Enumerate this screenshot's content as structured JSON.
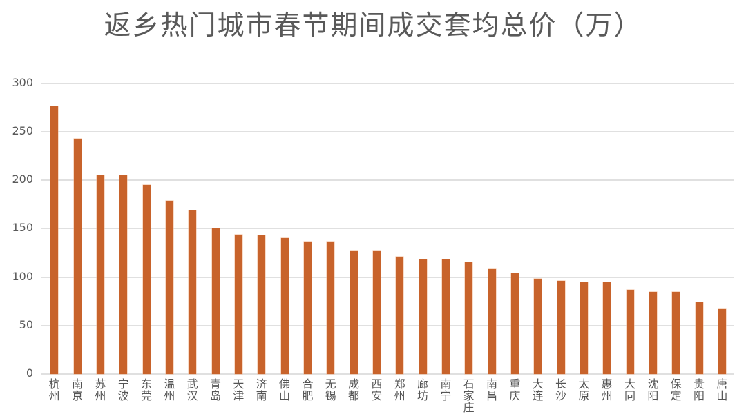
{
  "title": "返乡热门城市春节期间成交套均总价（万）",
  "colors": {
    "bar": "#c8632b",
    "grid": "#e0e0e0",
    "text": "#595959"
  },
  "chart_data": {
    "type": "bar",
    "title": "返乡热门城市春节期间成交套均总价（万）",
    "xlabel": "",
    "ylabel": "",
    "ylim": [
      0,
      300
    ],
    "yticks": [
      0,
      50,
      100,
      150,
      200,
      250,
      300
    ],
    "grid": true,
    "legend": null,
    "categories": [
      "杭州",
      "南京",
      "苏州",
      "宁波",
      "东莞",
      "温州",
      "武汉",
      "青岛",
      "天津",
      "济南",
      "佛山",
      "合肥",
      "无锡",
      "成都",
      "西安",
      "郑州",
      "廊坊",
      "南宁",
      "石家庄",
      "南昌",
      "重庆",
      "大连",
      "长沙",
      "太原",
      "惠州",
      "大同",
      "沈阳",
      "保定",
      "贵阳",
      "唐山"
    ],
    "values": [
      276,
      243,
      205,
      205,
      195,
      179,
      169,
      150,
      144,
      143,
      140,
      137,
      137,
      127,
      127,
      121,
      118,
      118,
      115,
      108,
      104,
      98,
      96,
      95,
      95,
      87,
      85,
      85,
      74,
      67
    ]
  }
}
